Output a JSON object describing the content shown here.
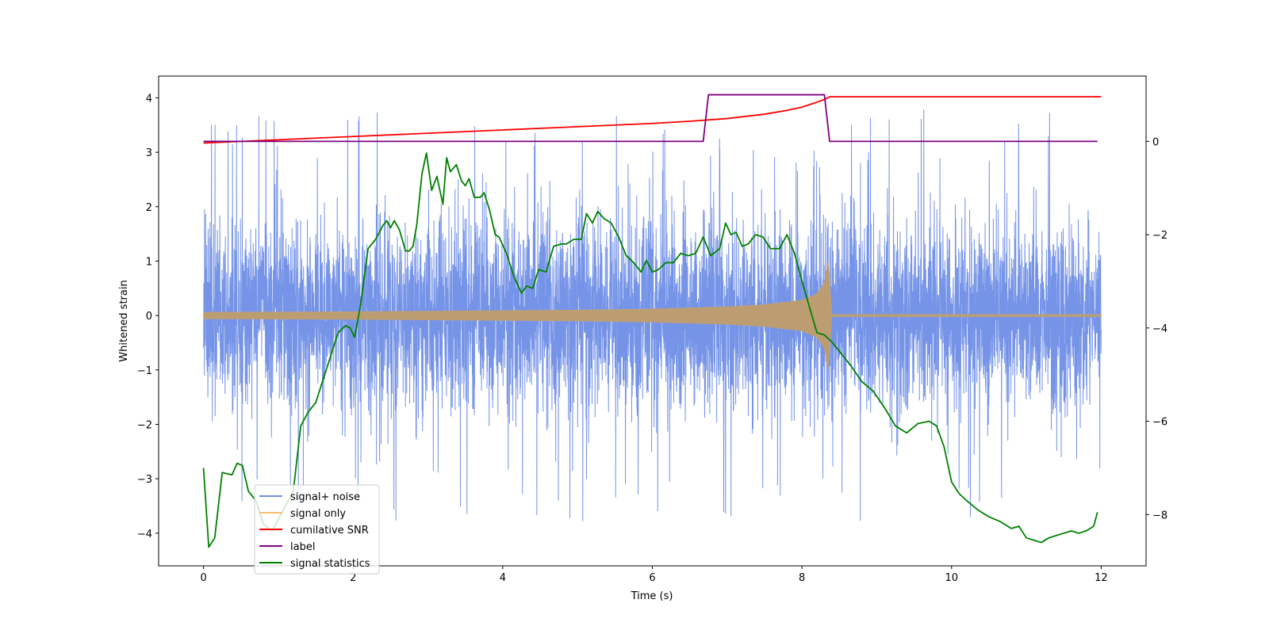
{
  "chart_data": {
    "type": "line",
    "title": "",
    "xlabel": "Time (s)",
    "ylabel": "Whitened strain",
    "xlim": [
      -0.6,
      12.6
    ],
    "ylim": [
      -4.6,
      4.4
    ],
    "y2lim": [
      -9.1,
      1.4
    ],
    "xticks": [
      0,
      2,
      4,
      6,
      8,
      10,
      12
    ],
    "yticks": [
      -4,
      -3,
      -2,
      -1,
      0,
      1,
      2,
      3,
      4
    ],
    "y2ticks": [
      -8,
      -6,
      -4,
      -2,
      0
    ],
    "tick_labels": {
      "x": [
        "0",
        "2",
        "4",
        "6",
        "8",
        "10",
        "12"
      ],
      "y": [
        "−4",
        "−3",
        "−2",
        "−1",
        "0",
        "1",
        "2",
        "3",
        "4"
      ],
      "y2": [
        "−8",
        "−6",
        "−4",
        "−2",
        "0"
      ]
    },
    "legend": {
      "placement": "lower-left",
      "entries": [
        "signal+ noise",
        "signal only",
        "cumilative SNR",
        "label",
        "signal statistics"
      ]
    },
    "series": [
      {
        "name": "signal+ noise",
        "axis": "left",
        "color": "#6f8ee6",
        "kind": "noise",
        "x_range": [
          0,
          12
        ],
        "sigma": 1.0,
        "envelope_max": 2.4,
        "envelope_min": -2.4,
        "spike_max": 4.0,
        "spike_min": -4.15
      },
      {
        "name": "signal only",
        "axis": "left",
        "color": "#f5bf6a",
        "kind": "chirp",
        "x": [
          0,
          1,
          2,
          3,
          4,
          5,
          6,
          7,
          7.5,
          8,
          8.2,
          8.3,
          8.35,
          8.4,
          12
        ],
        "amplitude": [
          0.06,
          0.065,
          0.07,
          0.08,
          0.09,
          0.1,
          0.12,
          0.16,
          0.2,
          0.28,
          0.4,
          0.6,
          1.02,
          0.02,
          0.02
        ]
      },
      {
        "name": "cumilative SNR",
        "axis": "left",
        "color": "#ff0000",
        "x": [
          0,
          0.5,
          1,
          2,
          3,
          4,
          5,
          6,
          6.5,
          7,
          7.5,
          7.8,
          8,
          8.2,
          8.3,
          8.37,
          12
        ],
        "values": [
          3.17,
          3.2,
          3.23,
          3.29,
          3.35,
          3.41,
          3.47,
          3.53,
          3.57,
          3.62,
          3.7,
          3.77,
          3.83,
          3.92,
          3.97,
          4.02,
          4.02
        ]
      },
      {
        "name": "label",
        "axis": "right",
        "color": "#800080",
        "x": [
          0,
          6.68,
          6.75,
          8.3,
          8.37,
          11.95
        ],
        "values": [
          0,
          0,
          1,
          1,
          0,
          0
        ]
      },
      {
        "name": "signal statistics",
        "axis": "right",
        "color": "#008000",
        "x": [
          0,
          0.07,
          0.15,
          0.25,
          0.38,
          0.45,
          0.52,
          0.6,
          0.7,
          0.8,
          0.92,
          1.0,
          1.1,
          1.2,
          1.3,
          1.4,
          1.5,
          1.6,
          1.7,
          1.8,
          1.9,
          1.96,
          2.02,
          2.1,
          2.2,
          2.3,
          2.4,
          2.45,
          2.5,
          2.55,
          2.62,
          2.7,
          2.75,
          2.8,
          2.85,
          2.92,
          2.98,
          3.05,
          3.12,
          3.2,
          3.25,
          3.3,
          3.38,
          3.45,
          3.5,
          3.55,
          3.62,
          3.7,
          3.75,
          3.82,
          3.9,
          3.95,
          4.05,
          4.15,
          4.25,
          4.32,
          4.4,
          4.48,
          4.58,
          4.68,
          4.78,
          4.85,
          4.95,
          5.05,
          5.12,
          5.2,
          5.27,
          5.35,
          5.45,
          5.55,
          5.65,
          5.75,
          5.85,
          5.92,
          6.0,
          6.08,
          6.18,
          6.28,
          6.38,
          6.48,
          6.58,
          6.68,
          6.78,
          6.9,
          6.98,
          7.05,
          7.12,
          7.2,
          7.28,
          7.38,
          7.48,
          7.58,
          7.7,
          7.8,
          7.9,
          8.0,
          8.1,
          8.2,
          8.3,
          8.4,
          8.5,
          8.65,
          8.8,
          8.95,
          9.1,
          9.25,
          9.4,
          9.55,
          9.7,
          9.8,
          9.9,
          10.0,
          10.1,
          10.2,
          10.35,
          10.5,
          10.65,
          10.8,
          10.9,
          11.0,
          11.1,
          11.2,
          11.3,
          11.4,
          11.5,
          11.6,
          11.7,
          11.8,
          11.9,
          11.95
        ],
        "values": [
          -7.0,
          -8.7,
          -8.5,
          -7.1,
          -7.15,
          -6.9,
          -6.95,
          -7.5,
          -7.7,
          -8.2,
          -8.35,
          -8.1,
          -7.8,
          -7.5,
          -6.1,
          -5.8,
          -5.6,
          -5.1,
          -4.6,
          -4.1,
          -3.95,
          -4.0,
          -4.2,
          -3.5,
          -2.3,
          -2.1,
          -1.8,
          -1.7,
          -1.85,
          -1.7,
          -1.9,
          -2.35,
          -2.35,
          -2.25,
          -1.8,
          -0.7,
          -0.25,
          -1.05,
          -0.75,
          -1.35,
          -0.35,
          -0.65,
          -0.5,
          -0.85,
          -0.95,
          -0.8,
          -1.2,
          -1.2,
          -1.1,
          -1.45,
          -2.0,
          -2.05,
          -2.4,
          -2.9,
          -3.25,
          -3.1,
          -3.15,
          -2.75,
          -2.8,
          -2.25,
          -2.2,
          -2.2,
          -2.1,
          -2.1,
          -1.55,
          -1.75,
          -1.5,
          -1.65,
          -1.75,
          -2.05,
          -2.45,
          -2.6,
          -2.8,
          -2.55,
          -2.8,
          -2.75,
          -2.6,
          -2.6,
          -2.4,
          -2.45,
          -2.4,
          -2.05,
          -2.45,
          -2.3,
          -1.75,
          -2.0,
          -1.95,
          -2.25,
          -2.2,
          -2.0,
          -2.05,
          -2.3,
          -2.3,
          -2.0,
          -2.4,
          -3.0,
          -3.55,
          -4.1,
          -4.15,
          -4.3,
          -4.5,
          -4.8,
          -5.15,
          -5.35,
          -5.7,
          -6.1,
          -6.25,
          -6.05,
          -6.0,
          -6.1,
          -6.55,
          -7.3,
          -7.55,
          -7.7,
          -7.9,
          -8.05,
          -8.15,
          -8.3,
          -8.25,
          -8.5,
          -8.55,
          -8.6,
          -8.5,
          -8.45,
          -8.4,
          -8.35,
          -8.4,
          -8.35,
          -8.25,
          -7.95
        ]
      }
    ]
  }
}
